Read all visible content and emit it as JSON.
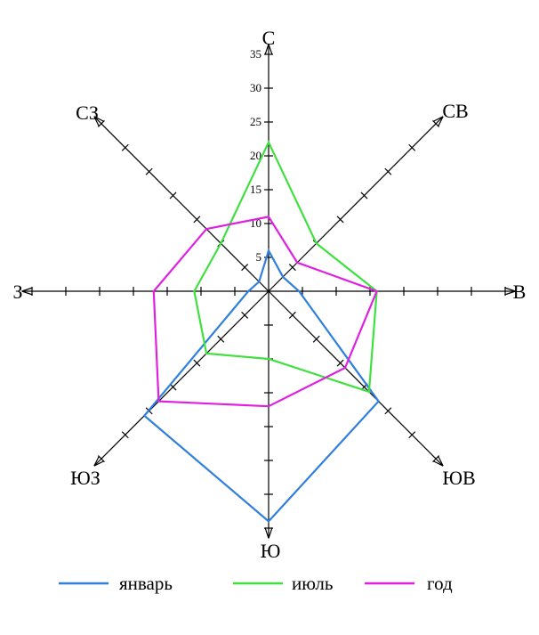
{
  "chart_data": {
    "type": "radar",
    "title": "",
    "directions": [
      "С",
      "СВ",
      "В",
      "ЮВ",
      "Ю",
      "ЮЗ",
      "З",
      "СЗ"
    ],
    "axis_ticks": [
      "5",
      "10",
      "15",
      "20",
      "25",
      "30",
      "35"
    ],
    "rlim": [
      0,
      35
    ],
    "grid": false,
    "legend_position": "bottom",
    "series": [
      {
        "name": "январь",
        "color": "#2f7fdc",
        "values": [
          6,
          3,
          4.5,
          23,
          34,
          26,
          3,
          2
        ]
      },
      {
        "name": "июль",
        "color": "#3fe03f",
        "values": [
          22,
          10,
          16,
          21,
          10,
          13,
          11,
          10
        ]
      },
      {
        "name": "год",
        "color": "#e020e0",
        "values": [
          11,
          6,
          16,
          16,
          17,
          23,
          17,
          13
        ]
      }
    ]
  }
}
